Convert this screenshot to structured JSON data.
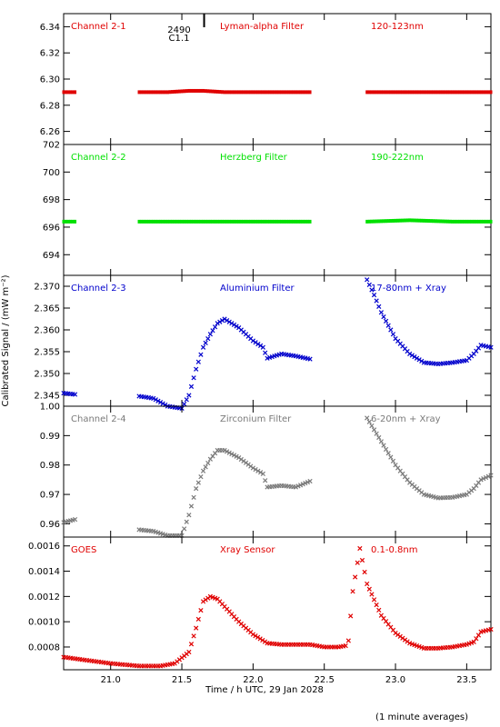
{
  "figure": {
    "xlabel": "Time / h UTC, 29 Jan 2028",
    "ylabel": "Calibrated Signal / (mW m⁻²)",
    "footnote": "(1 minute averages)",
    "marker_label_top": "2490",
    "marker_label_bottom": "C1.1"
  },
  "chart_data": [
    {
      "type": "scatter",
      "labels": [
        "Channel 2-1",
        "Lyman-alpha Filter",
        "120-123nm"
      ],
      "color": "#e00000",
      "marker": "dot",
      "ylim": [
        6.25,
        6.35
      ],
      "yticks": [
        6.26,
        6.28,
        6.3,
        6.32,
        6.34
      ],
      "ytick_labels": [
        "6.26",
        "6.28",
        "6.30",
        "6.32",
        "6.34"
      ],
      "xlim": [
        20.67,
        23.67
      ],
      "series": [
        {
          "x": [
            20.67,
            20.75
          ],
          "y": [
            6.29,
            6.29
          ]
        },
        {
          "x": [
            21.2,
            21.4,
            21.55,
            21.65,
            21.8,
            22.0,
            22.2,
            22.4
          ],
          "y": [
            6.29,
            6.29,
            6.291,
            6.291,
            6.29,
            6.29,
            6.29,
            6.29
          ]
        },
        {
          "x": [
            22.8,
            23.0,
            23.2,
            23.4,
            23.67
          ],
          "y": [
            6.29,
            6.29,
            6.29,
            6.29,
            6.29
          ]
        }
      ]
    },
    {
      "type": "scatter",
      "labels": [
        "Channel 2-2",
        "Herzberg Filter",
        "190-222nm"
      ],
      "color": "#00e000",
      "marker": "dot",
      "ylim": [
        692.5,
        702.0
      ],
      "yticks": [
        694,
        696,
        698,
        700,
        702
      ],
      "ytick_labels": [
        "694",
        "696",
        "698",
        "700",
        "702"
      ],
      "xlim": [
        20.67,
        23.67
      ],
      "series": [
        {
          "x": [
            20.67,
            20.75
          ],
          "y": [
            696.4,
            696.4
          ]
        },
        {
          "x": [
            21.2,
            21.6,
            22.0,
            22.4
          ],
          "y": [
            696.4,
            696.4,
            696.4,
            696.4
          ]
        },
        {
          "x": [
            22.8,
            23.1,
            23.4,
            23.67
          ],
          "y": [
            696.4,
            696.5,
            696.4,
            696.4
          ]
        }
      ]
    },
    {
      "type": "scatter",
      "labels": [
        "Channel 2-3",
        "Aluminium Filter",
        "17-80nm + Xray"
      ],
      "color": "#0000cc",
      "marker": "cross",
      "ylim": [
        2.3425,
        2.3725
      ],
      "yticks": [
        2.345,
        2.35,
        2.355,
        2.36,
        2.365,
        2.37
      ],
      "ytick_labels": [
        "2.345",
        "2.350",
        "2.355",
        "2.360",
        "2.365",
        "2.370"
      ],
      "xlim": [
        20.67,
        23.67
      ],
      "series": [
        {
          "x": [
            20.67,
            20.75
          ],
          "y": [
            2.3455,
            2.3452
          ]
        },
        {
          "x": [
            21.2,
            21.3,
            21.4,
            21.5,
            21.55,
            21.6,
            21.65,
            21.7,
            21.75,
            21.8,
            21.9,
            22.0,
            22.07,
            22.1,
            22.2,
            22.3,
            22.4
          ],
          "y": [
            2.3448,
            2.3443,
            2.3425,
            2.342,
            2.345,
            2.351,
            2.356,
            2.359,
            2.3615,
            2.3625,
            2.3605,
            2.3575,
            2.356,
            2.3535,
            2.3545,
            2.354,
            2.3533
          ]
        },
        {
          "x": [
            22.8,
            22.85,
            22.9,
            23.0,
            23.1,
            23.2,
            23.3,
            23.4,
            23.5,
            23.55,
            23.6,
            23.67
          ],
          "y": [
            2.3715,
            2.368,
            2.364,
            2.358,
            2.3545,
            2.3525,
            2.3522,
            2.3525,
            2.353,
            2.3545,
            2.3565,
            2.356
          ]
        }
      ]
    },
    {
      "type": "scatter",
      "labels": [
        "Channel 2-4",
        "Zirconium Filter",
        "6-20nm + Xray"
      ],
      "color": "#7a7a7a",
      "marker": "cross",
      "ylim": [
        0.9555,
        1.0
      ],
      "yticks": [
        0.96,
        0.97,
        0.98,
        0.99,
        1.0
      ],
      "ytick_labels": [
        "0.96",
        "0.97",
        "0.98",
        "0.99",
        "1.00"
      ],
      "xlim": [
        20.67,
        23.67
      ],
      "series": [
        {
          "x": [
            20.67,
            20.75
          ],
          "y": [
            0.9605,
            0.9615
          ]
        },
        {
          "x": [
            21.2,
            21.3,
            21.4,
            21.5,
            21.55,
            21.6,
            21.65,
            21.7,
            21.75,
            21.8,
            21.9,
            22.0,
            22.07,
            22.1,
            22.2,
            22.3,
            22.4
          ],
          "y": [
            0.958,
            0.9575,
            0.956,
            0.956,
            0.963,
            0.972,
            0.978,
            0.982,
            0.985,
            0.985,
            0.9825,
            0.979,
            0.977,
            0.9725,
            0.973,
            0.9725,
            0.9745
          ]
        },
        {
          "x": [
            22.8,
            22.85,
            22.9,
            23.0,
            23.1,
            23.2,
            23.3,
            23.4,
            23.5,
            23.55,
            23.6,
            23.67
          ],
          "y": [
            0.996,
            0.992,
            0.988,
            0.98,
            0.974,
            0.97,
            0.9688,
            0.969,
            0.97,
            0.972,
            0.975,
            0.9765
          ]
        }
      ]
    },
    {
      "type": "scatter",
      "labels": [
        "GOES",
        "Xray Sensor",
        "0.1-0.8nm"
      ],
      "color": "#e00000",
      "marker": "cross",
      "ylim": [
        0.00062,
        0.00167
      ],
      "yticks": [
        0.0008,
        0.001,
        0.0012,
        0.0014,
        0.0016
      ],
      "ytick_labels": [
        "0.0008",
        "0.0010",
        "0.0012",
        "0.0014",
        "0.0016"
      ],
      "xlim": [
        20.67,
        23.67
      ],
      "xticks": [
        21.0,
        21.5,
        22.0,
        22.5,
        23.0,
        23.5
      ],
      "xtick_labels": [
        "21.0",
        "21.5",
        "22.0",
        "22.5",
        "23.0",
        "23.5"
      ],
      "series": [
        {
          "x": [
            20.67,
            20.8,
            21.0,
            21.2,
            21.35,
            21.45,
            21.55,
            21.6,
            21.65,
            21.7,
            21.75,
            21.8,
            21.9,
            22.0,
            22.1,
            22.2,
            22.3,
            22.4,
            22.5,
            22.6,
            22.65,
            22.67,
            22.7,
            22.75,
            22.8,
            22.9,
            23.0,
            23.1,
            23.2,
            23.3,
            23.4,
            23.5,
            23.55,
            23.6,
            23.67
          ],
          "y": [
            0.00072,
            0.0007,
            0.00067,
            0.00065,
            0.00065,
            0.00067,
            0.00076,
            0.00095,
            0.00116,
            0.0012,
            0.00118,
            0.00112,
            0.001,
            0.0009,
            0.00083,
            0.00082,
            0.00082,
            0.00082,
            0.0008,
            0.0008,
            0.00081,
            0.00085,
            0.00124,
            0.00158,
            0.0013,
            0.00105,
            0.00091,
            0.00083,
            0.00079,
            0.00079,
            0.0008,
            0.00082,
            0.00084,
            0.00092,
            0.00094
          ]
        }
      ]
    }
  ]
}
